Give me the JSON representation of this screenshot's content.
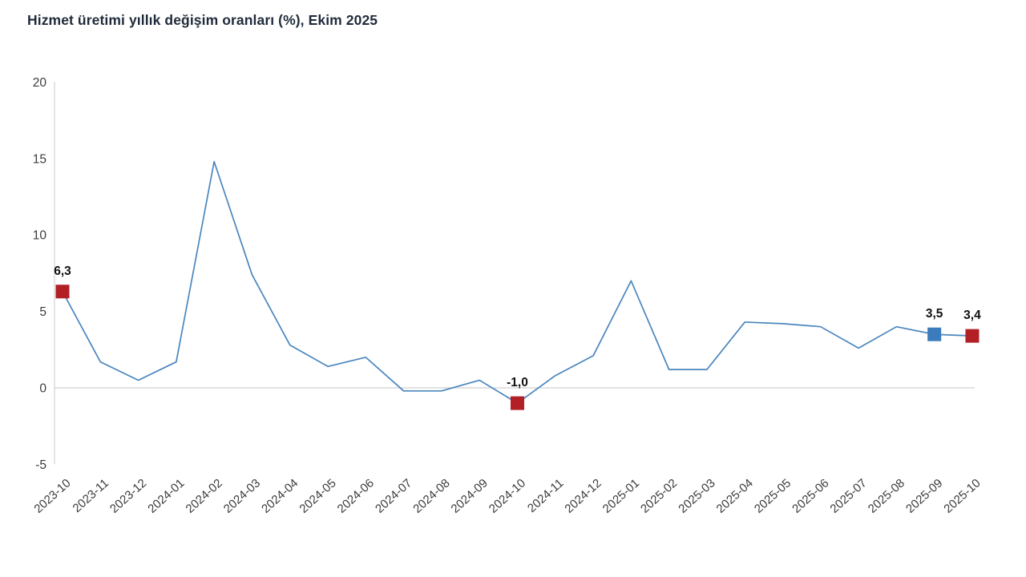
{
  "title": "Hizmet üretimi yıllık değişim oranları (%), Ekim 2025",
  "chart_data": {
    "type": "line",
    "title": "Hizmet üretimi yıllık değişim oranları (%), Ekim 2025",
    "categories": [
      "2023-10",
      "2023-11",
      "2023-12",
      "2024-01",
      "2024-02",
      "2024-03",
      "2024-04",
      "2024-05",
      "2024-06",
      "2024-07",
      "2024-08",
      "2024-09",
      "2024-10",
      "2024-11",
      "2024-12",
      "2025-01",
      "2025-02",
      "2025-03",
      "2025-04",
      "2025-05",
      "2025-06",
      "2025-07",
      "2025-08",
      "2025-09",
      "2025-10"
    ],
    "values": [
      6.3,
      1.7,
      0.5,
      1.7,
      14.8,
      7.4,
      2.8,
      1.4,
      2.0,
      -0.2,
      -0.2,
      0.5,
      -1.0,
      0.8,
      2.1,
      7.0,
      1.2,
      1.2,
      4.3,
      4.2,
      4.0,
      2.6,
      4.0,
      3.5,
      3.4
    ],
    "ylim": [
      -5,
      20
    ],
    "yticks": [
      20,
      15,
      10,
      5,
      0,
      -5
    ],
    "grid": "zero-line-only",
    "legend": "none",
    "xlabel": "",
    "ylabel": "",
    "labeled_points": [
      {
        "index": 0,
        "category": "2023-10",
        "value": 6.3,
        "label": "6,3",
        "marker": "square",
        "marker_color": "#b21f24"
      },
      {
        "index": 12,
        "category": "2024-10",
        "value": -1.0,
        "label": "-1,0",
        "marker": "square",
        "marker_color": "#b21f24"
      },
      {
        "index": 23,
        "category": "2025-09",
        "value": 3.5,
        "label": "3,5",
        "marker": "square",
        "marker_color": "#3c7cbc"
      },
      {
        "index": 24,
        "category": "2025-10",
        "value": 3.4,
        "label": "3,4",
        "marker": "square",
        "marker_color": "#b21f24"
      }
    ],
    "colors": {
      "line": "#4a86be",
      "marker_red": "#b21f24",
      "marker_blue": "#3c7cbc",
      "zero_line": "#d9d9d9",
      "axis_line": "#c8c8c8",
      "tick_text": "#3c3c3c",
      "data_label_text": "#111111",
      "title_text": "#1f2b3b"
    }
  }
}
